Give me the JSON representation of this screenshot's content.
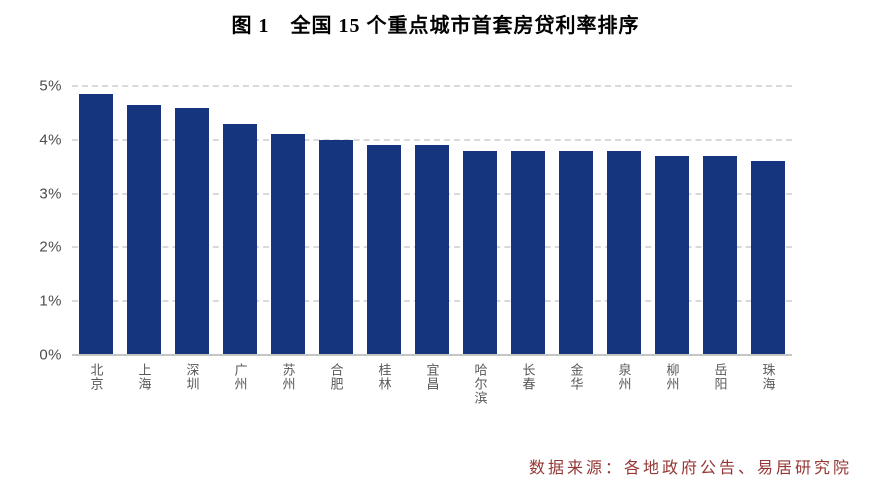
{
  "title": "图 1　全国 15 个重点城市首套房贷利率排序",
  "source": "数据来源：各地政府公告、易居研究院",
  "chart_data": {
    "type": "bar",
    "title": "图 1　全国 15 个重点城市首套房贷利率排序",
    "categories": [
      "北京",
      "上海",
      "深圳",
      "广州",
      "苏州",
      "合肥",
      "桂林",
      "宜昌",
      "哈尔滨",
      "长春",
      "金华",
      "泉州",
      "柳州",
      "岳阳",
      "珠海"
    ],
    "values": [
      4.85,
      4.65,
      4.6,
      4.3,
      4.1,
      4.0,
      3.9,
      3.9,
      3.8,
      3.8,
      3.8,
      3.8,
      3.7,
      3.7,
      3.6
    ],
    "value_unit": "%",
    "xlabel": "",
    "ylabel": "",
    "ylim": [
      0,
      5
    ],
    "yticks": [
      "0%",
      "1%",
      "2%",
      "3%",
      "4%",
      "5%"
    ],
    "grid": "horizontal-dashed",
    "legend_position": "none",
    "bar_color": "#15357f",
    "gridline_color": "#d9d9d9",
    "axis_line_color": "#c6c6c6",
    "tick_label_color": "#4d4d4d",
    "category_label_color": "#595959",
    "source_text_color": "#953735"
  }
}
